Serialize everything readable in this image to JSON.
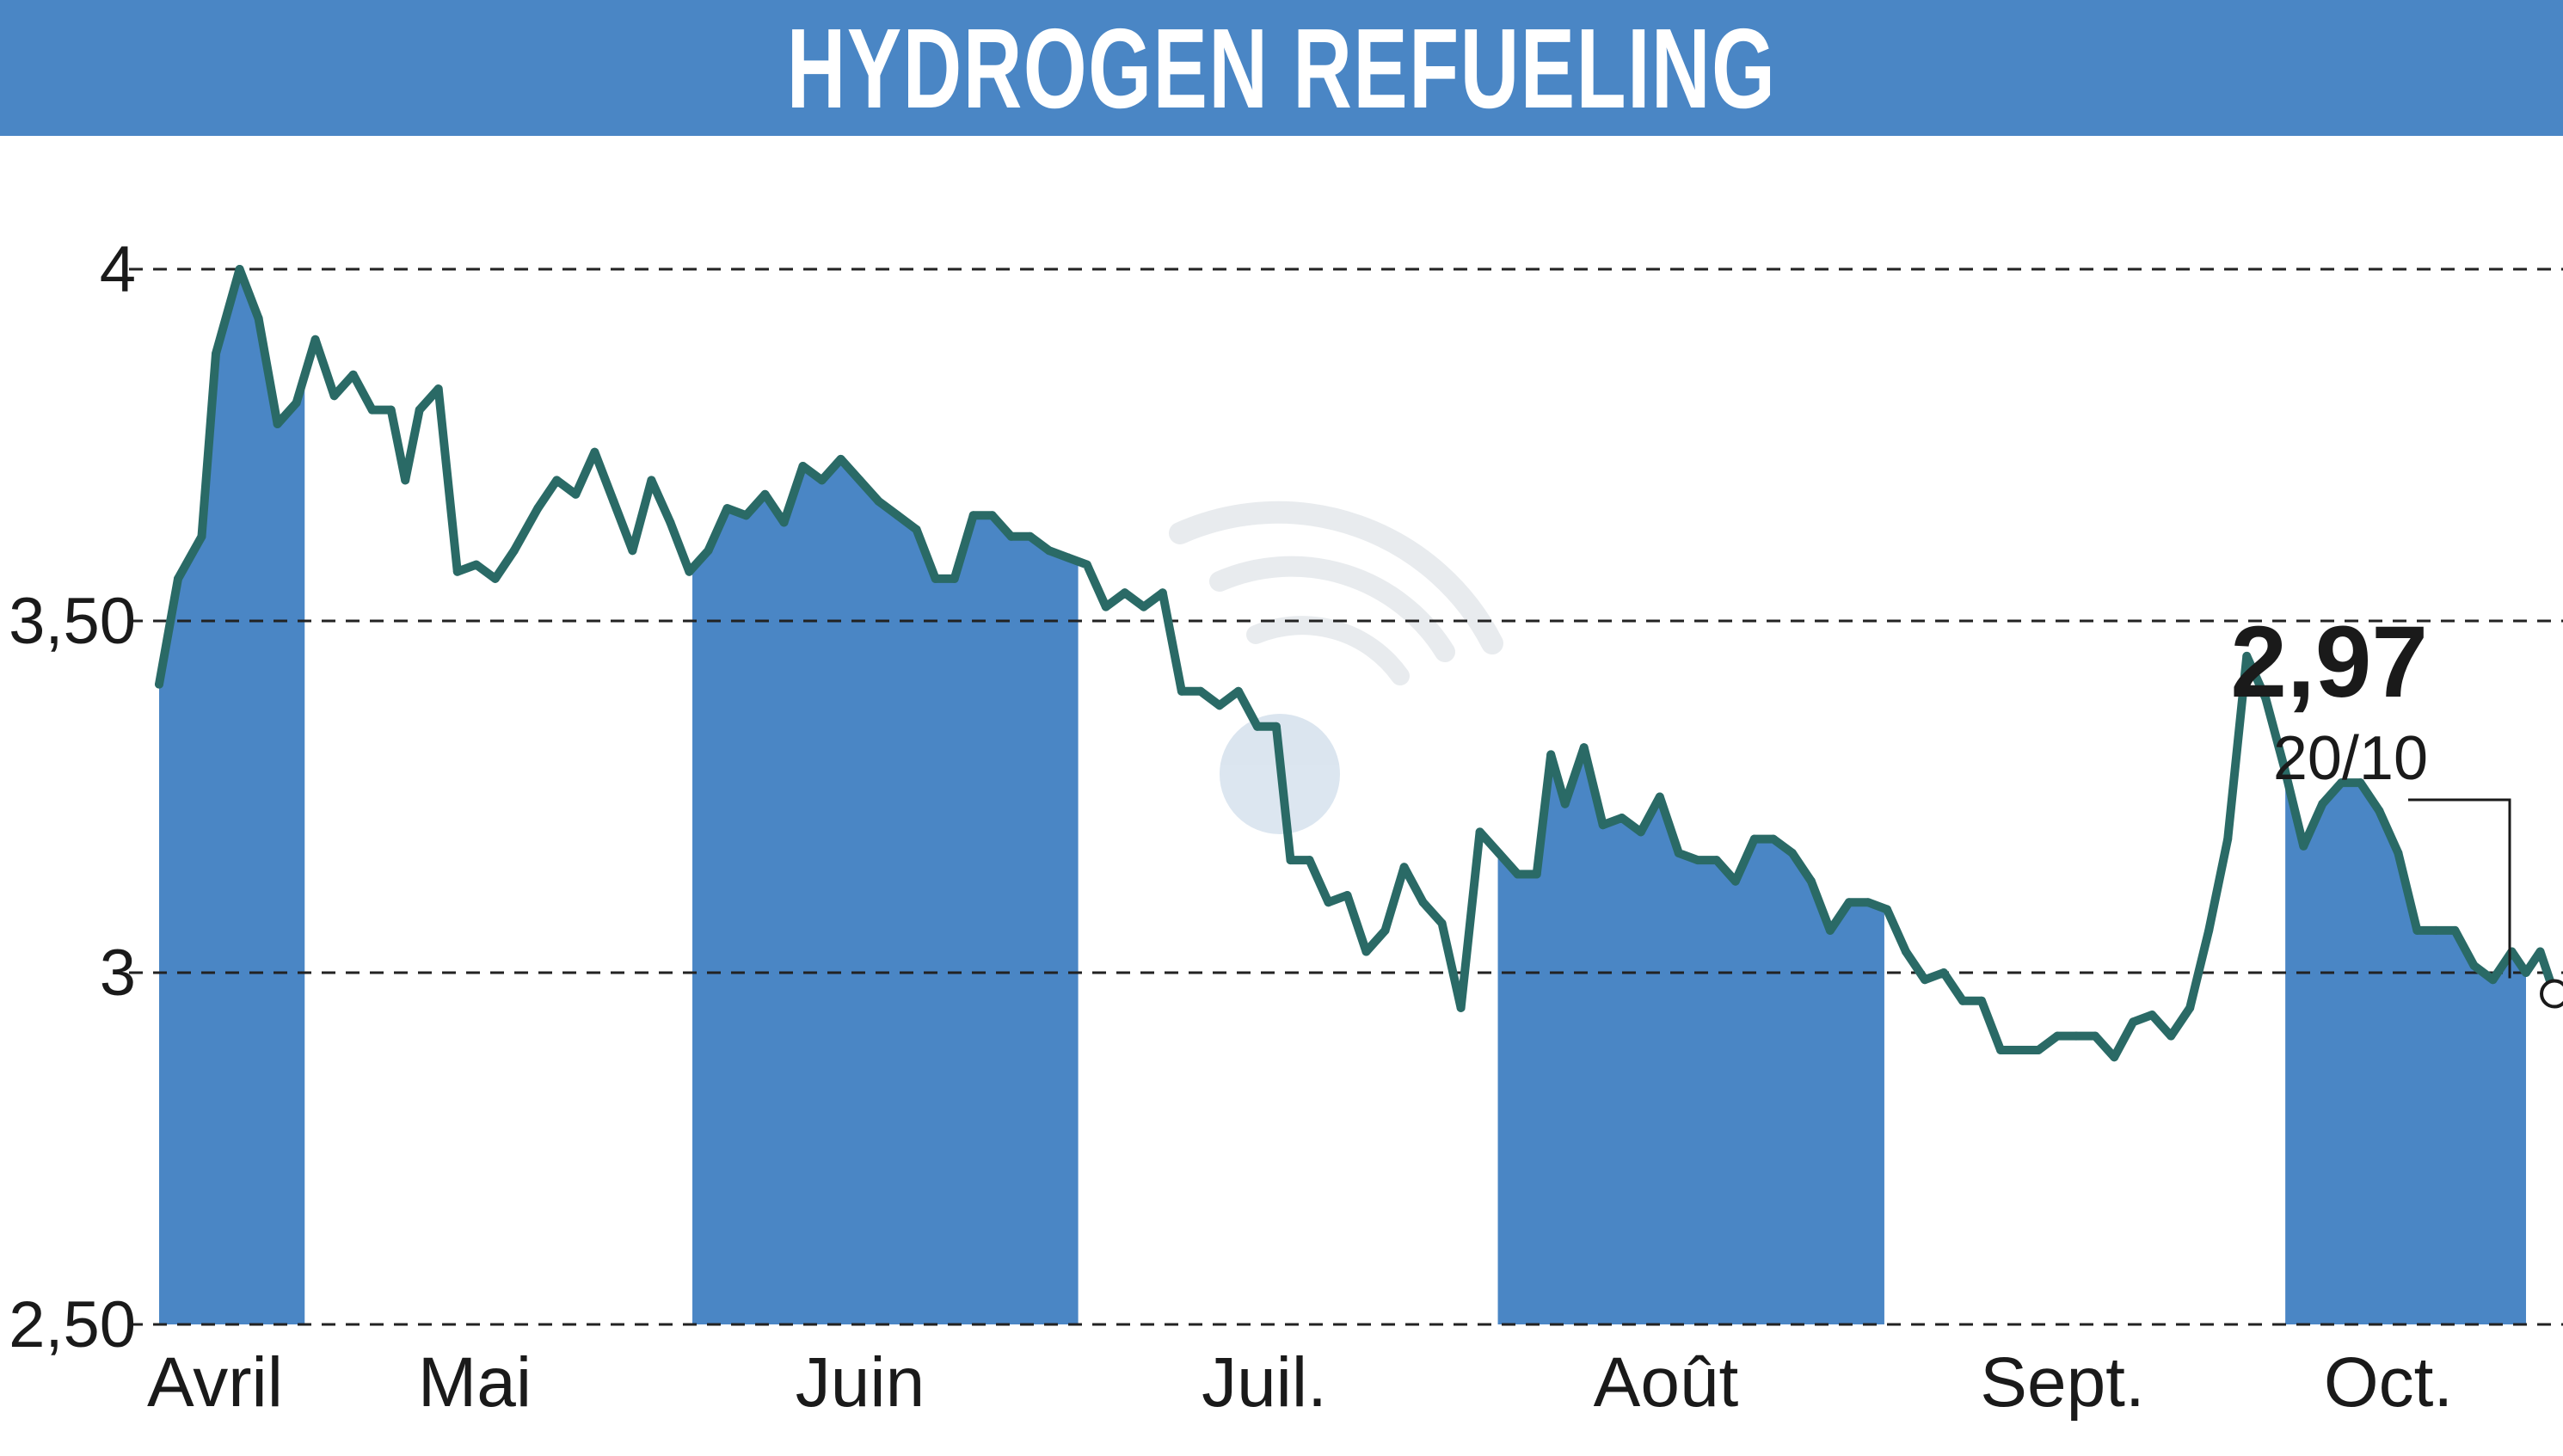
{
  "title": "HYDROGEN REFUELING",
  "colors": {
    "accent": "#4a86c5",
    "line": "#2a6a66",
    "grid": "#222222",
    "text": "#1a1a1a"
  },
  "watermark_icon": "wifi-signal-logo",
  "chart_data": {
    "type": "line",
    "title": "HYDROGEN REFUELING",
    "xlabel": "",
    "ylabel": "",
    "ylim": [
      2.5,
      4.0
    ],
    "y_ticks": [
      {
        "value": 4.0,
        "label": "4"
      },
      {
        "value": 3.5,
        "label": "3,50"
      },
      {
        "value": 3.0,
        "label": "3"
      },
      {
        "value": 2.5,
        "label": "2,50"
      }
    ],
    "grid": "horizontal dashed",
    "months": [
      {
        "label": "Avril",
        "start": 0.0,
        "end": 0.0615,
        "shaded": true
      },
      {
        "label": "Mai",
        "start": 0.0615,
        "end": 0.2253,
        "shaded": false
      },
      {
        "label": "Juin",
        "start": 0.2253,
        "end": 0.3883,
        "shaded": true
      },
      {
        "label": "Juil.",
        "start": 0.3883,
        "end": 0.5656,
        "shaded": false
      },
      {
        "label": "Août",
        "start": 0.5656,
        "end": 0.7289,
        "shaded": true
      },
      {
        "label": "Sept.",
        "start": 0.7289,
        "end": 0.8983,
        "shaded": false
      },
      {
        "label": "Oct.",
        "start": 0.8983,
        "end": 1.0,
        "shaded": true
      }
    ],
    "series": [
      {
        "values": [
          [
            0.0,
            3.41
          ],
          [
            0.008,
            3.56
          ],
          [
            0.018,
            3.62
          ],
          [
            0.024,
            3.88
          ],
          [
            0.034,
            4.0
          ],
          [
            0.042,
            3.93
          ],
          [
            0.05,
            3.78
          ],
          [
            0.058,
            3.81
          ],
          [
            0.066,
            3.9
          ],
          [
            0.074,
            3.82
          ],
          [
            0.082,
            3.85
          ],
          [
            0.09,
            3.8
          ],
          [
            0.098,
            3.8
          ],
          [
            0.104,
            3.7
          ],
          [
            0.11,
            3.8
          ],
          [
            0.118,
            3.83
          ],
          [
            0.126,
            3.57
          ],
          [
            0.134,
            3.58
          ],
          [
            0.142,
            3.56
          ],
          [
            0.15,
            3.6
          ],
          [
            0.16,
            3.66
          ],
          [
            0.168,
            3.7
          ],
          [
            0.176,
            3.68
          ],
          [
            0.184,
            3.74
          ],
          [
            0.192,
            3.67
          ],
          [
            0.2,
            3.6
          ],
          [
            0.208,
            3.7
          ],
          [
            0.216,
            3.64
          ],
          [
            0.224,
            3.57
          ],
          [
            0.232,
            3.6
          ],
          [
            0.24,
            3.66
          ],
          [
            0.248,
            3.65
          ],
          [
            0.256,
            3.68
          ],
          [
            0.264,
            3.64
          ],
          [
            0.272,
            3.72
          ],
          [
            0.28,
            3.7
          ],
          [
            0.288,
            3.73
          ],
          [
            0.296,
            3.7
          ],
          [
            0.304,
            3.67
          ],
          [
            0.312,
            3.65
          ],
          [
            0.32,
            3.63
          ],
          [
            0.328,
            3.56
          ],
          [
            0.336,
            3.56
          ],
          [
            0.344,
            3.65
          ],
          [
            0.352,
            3.65
          ],
          [
            0.36,
            3.62
          ],
          [
            0.368,
            3.62
          ],
          [
            0.376,
            3.6
          ],
          [
            0.384,
            3.59
          ],
          [
            0.392,
            3.58
          ],
          [
            0.4,
            3.52
          ],
          [
            0.408,
            3.54
          ],
          [
            0.416,
            3.52
          ],
          [
            0.424,
            3.54
          ],
          [
            0.432,
            3.4
          ],
          [
            0.44,
            3.4
          ],
          [
            0.448,
            3.38
          ],
          [
            0.456,
            3.4
          ],
          [
            0.464,
            3.35
          ],
          [
            0.472,
            3.35
          ],
          [
            0.478,
            3.16
          ],
          [
            0.486,
            3.16
          ],
          [
            0.494,
            3.1
          ],
          [
            0.502,
            3.11
          ],
          [
            0.51,
            3.03
          ],
          [
            0.518,
            3.06
          ],
          [
            0.526,
            3.15
          ],
          [
            0.534,
            3.1
          ],
          [
            0.542,
            3.07
          ],
          [
            0.55,
            2.95
          ],
          [
            0.558,
            3.2
          ],
          [
            0.566,
            3.17
          ],
          [
            0.574,
            3.14
          ],
          [
            0.582,
            3.14
          ],
          [
            0.588,
            3.31
          ],
          [
            0.594,
            3.24
          ],
          [
            0.602,
            3.32
          ],
          [
            0.61,
            3.21
          ],
          [
            0.618,
            3.22
          ],
          [
            0.626,
            3.2
          ],
          [
            0.634,
            3.25
          ],
          [
            0.642,
            3.17
          ],
          [
            0.65,
            3.16
          ],
          [
            0.658,
            3.16
          ],
          [
            0.666,
            3.13
          ],
          [
            0.674,
            3.19
          ],
          [
            0.682,
            3.19
          ],
          [
            0.69,
            3.17
          ],
          [
            0.698,
            3.13
          ],
          [
            0.706,
            3.06
          ],
          [
            0.714,
            3.1
          ],
          [
            0.722,
            3.1
          ],
          [
            0.73,
            3.09
          ],
          [
            0.738,
            3.03
          ],
          [
            0.746,
            2.99
          ],
          [
            0.754,
            3.0
          ],
          [
            0.762,
            2.96
          ],
          [
            0.77,
            2.96
          ],
          [
            0.778,
            2.89
          ],
          [
            0.786,
            2.89
          ],
          [
            0.794,
            2.89
          ],
          [
            0.802,
            2.91
          ],
          [
            0.81,
            2.91
          ],
          [
            0.818,
            2.91
          ],
          [
            0.826,
            2.88
          ],
          [
            0.834,
            2.93
          ],
          [
            0.842,
            2.94
          ],
          [
            0.85,
            2.91
          ],
          [
            0.858,
            2.95
          ],
          [
            0.866,
            3.06
          ],
          [
            0.874,
            3.19
          ],
          [
            0.882,
            3.45
          ],
          [
            0.89,
            3.39
          ],
          [
            0.898,
            3.29
          ],
          [
            0.906,
            3.18
          ],
          [
            0.914,
            3.24
          ],
          [
            0.922,
            3.27
          ],
          [
            0.93,
            3.27
          ],
          [
            0.938,
            3.23
          ],
          [
            0.946,
            3.17
          ],
          [
            0.954,
            3.06
          ],
          [
            0.962,
            3.06
          ],
          [
            0.97,
            3.06
          ],
          [
            0.978,
            3.01
          ],
          [
            0.986,
            2.99
          ],
          [
            0.994,
            3.03
          ],
          [
            1.0,
            3.0
          ],
          [
            1.006,
            3.03
          ],
          [
            1.012,
            2.97
          ]
        ]
      }
    ],
    "last_value": {
      "label": "2,97",
      "date": "20/10",
      "value": 2.97
    }
  }
}
